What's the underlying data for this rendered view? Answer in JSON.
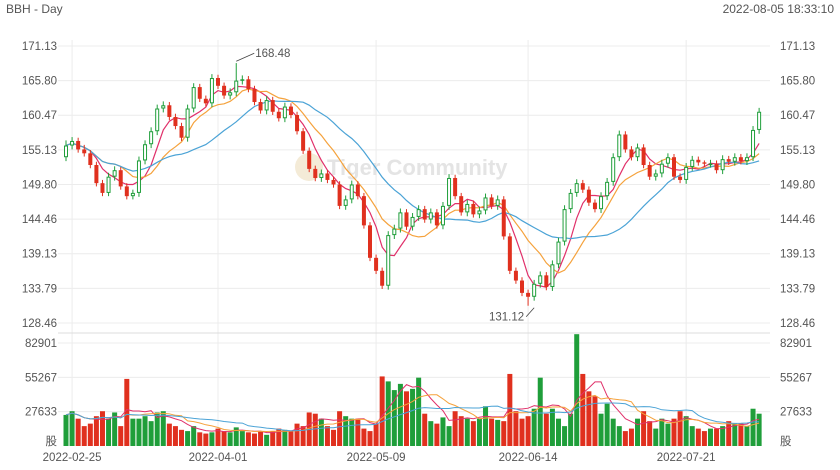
{
  "header": {
    "symbol_period": "BBH - Day",
    "timestamp": "2022-08-05 18:33:10"
  },
  "watermark": "Tiger Community",
  "colors": {
    "up": "#1f9e3a",
    "down": "#e0301e",
    "ma1": "#e0306a",
    "ma2": "#f5a23c",
    "ma3": "#4ba3d6",
    "grid": "#ececec"
  },
  "chart_data": [
    {
      "type": "candlestick",
      "price_axis": {
        "ylim": [
          128.46,
          171.13
        ],
        "tick_labels": [
          "171.13",
          "165.80",
          "160.47",
          "155.13",
          "149.80",
          "144.46",
          "139.13",
          "133.79",
          "128.46"
        ]
      },
      "x_tick_labels": [
        {
          "label": "2022-02-25",
          "index": 1
        },
        {
          "label": "2022-04-01",
          "index": 25
        },
        {
          "label": "2022-05-09",
          "index": 51
        },
        {
          "label": "2022-06-14",
          "index": 76
        },
        {
          "label": "2022-07-21",
          "index": 102
        }
      ],
      "annotations": [
        {
          "text": "168.48",
          "index": 28,
          "value": 168.48
        },
        {
          "text": "131.12",
          "index": 77,
          "value": 131.12
        }
      ],
      "close": [
        155.8,
        156.5,
        155.2,
        154.6,
        152.8,
        150.0,
        148.5,
        151.0,
        152.0,
        149.5,
        148.0,
        148.5,
        153.5,
        156.0,
        158.0,
        161.5,
        162.0,
        160.2,
        158.8,
        157.0,
        161.5,
        164.8,
        163.0,
        162.3,
        166.2,
        165.0,
        163.5,
        164.0,
        165.8,
        166.0,
        164.5,
        162.5,
        161.2,
        162.8,
        161.0,
        160.0,
        161.8,
        160.5,
        158.0,
        155.0,
        152.2,
        150.8,
        151.5,
        150.5,
        149.8,
        146.5,
        147.5,
        149.8,
        148.0,
        143.5,
        138.5,
        136.5,
        134.2,
        142.0,
        143.0,
        145.5,
        143.3,
        144.8,
        146.0,
        144.4,
        145.5,
        143.5,
        146.5,
        150.8,
        148.0,
        145.5,
        146.8,
        145.2,
        145.8,
        147.8,
        146.5,
        147.5,
        141.8,
        136.5,
        135.0,
        133.1,
        132.5,
        134.5,
        135.8,
        134.0,
        137.5,
        141.0,
        146.0,
        148.5,
        150.0,
        149.0,
        147.0,
        146.0,
        148.0,
        150.2,
        154.0,
        157.5,
        155.2,
        154.0,
        155.5,
        152.8,
        151.0,
        151.5,
        153.0,
        154.0,
        151.0,
        150.5,
        152.5,
        153.6,
        153.2,
        153.0,
        153.0,
        152.0,
        153.7,
        153.3,
        154.0,
        153.4,
        154.0,
        158.2,
        161.0
      ],
      "open": [
        154.0,
        155.8,
        156.5,
        155.2,
        154.6,
        152.8,
        150.0,
        148.5,
        151.0,
        152.0,
        149.5,
        148.0,
        148.5,
        153.5,
        156.0,
        158.0,
        161.5,
        162.0,
        160.2,
        158.8,
        157.0,
        161.5,
        164.8,
        163.0,
        162.3,
        166.2,
        165.0,
        163.5,
        164.0,
        165.8,
        166.0,
        164.5,
        162.5,
        161.2,
        162.8,
        161.0,
        160.0,
        161.8,
        160.5,
        158.0,
        155.0,
        152.2,
        150.8,
        151.5,
        150.5,
        149.8,
        146.5,
        147.5,
        149.8,
        148.0,
        143.5,
        138.5,
        136.5,
        134.2,
        142.0,
        143.0,
        145.5,
        143.3,
        144.8,
        146.0,
        144.4,
        145.5,
        143.5,
        146.5,
        150.8,
        148.0,
        145.5,
        146.8,
        145.2,
        145.8,
        147.8,
        146.5,
        147.5,
        141.8,
        136.5,
        135.0,
        133.1,
        132.5,
        134.5,
        135.8,
        134.0,
        137.5,
        141.0,
        146.0,
        148.5,
        150.0,
        149.0,
        147.0,
        146.0,
        148.0,
        150.2,
        154.0,
        157.5,
        155.2,
        154.0,
        155.5,
        152.8,
        151.0,
        151.5,
        153.0,
        154.0,
        151.0,
        150.5,
        152.5,
        153.6,
        153.2,
        153.0,
        153.0,
        152.0,
        153.7,
        153.3,
        154.0,
        153.4,
        154.0,
        158.2
      ],
      "high": [
        156.6,
        157.1,
        157.0,
        155.9,
        155.1,
        153.3,
        150.5,
        151.6,
        152.6,
        152.5,
        150.0,
        149.0,
        154.1,
        156.6,
        158.6,
        162.1,
        162.6,
        162.5,
        160.7,
        159.3,
        162.1,
        165.4,
        165.3,
        163.5,
        166.8,
        166.7,
        165.5,
        164.6,
        168.5,
        166.6,
        166.5,
        165.0,
        163.0,
        163.4,
        163.3,
        161.5,
        162.4,
        162.3,
        161.0,
        158.5,
        155.5,
        152.7,
        152.1,
        152.0,
        151.0,
        150.3,
        148.1,
        150.4,
        150.3,
        148.5,
        144.0,
        139.0,
        137.0,
        142.6,
        143.6,
        146.1,
        146.0,
        145.4,
        146.6,
        146.5,
        146.1,
        146.0,
        147.1,
        151.4,
        151.3,
        148.5,
        147.4,
        147.3,
        146.4,
        148.4,
        148.3,
        148.1,
        148.0,
        142.3,
        137.0,
        135.5,
        133.6,
        135.1,
        136.4,
        136.3,
        138.1,
        141.6,
        146.6,
        149.1,
        150.6,
        150.5,
        149.5,
        147.5,
        148.6,
        150.8,
        154.6,
        158.1,
        158.0,
        155.7,
        156.1,
        156.0,
        153.3,
        152.1,
        153.6,
        154.6,
        154.5,
        151.5,
        153.1,
        154.2,
        154.1,
        153.5,
        153.6,
        153.5,
        154.3,
        154.2,
        154.6,
        154.5,
        154.6,
        158.8,
        161.6
      ],
      "low": [
        153.4,
        155.2,
        154.7,
        154.1,
        152.3,
        149.5,
        148.0,
        148.0,
        150.4,
        149.0,
        147.5,
        147.5,
        147.9,
        152.9,
        155.4,
        157.4,
        160.9,
        159.7,
        158.3,
        156.5,
        156.4,
        160.9,
        162.5,
        161.8,
        161.7,
        164.5,
        163.0,
        162.9,
        163.4,
        165.2,
        164.0,
        162.0,
        160.7,
        160.6,
        160.5,
        159.5,
        159.4,
        160.0,
        157.5,
        154.5,
        151.7,
        150.3,
        150.2,
        150.0,
        149.3,
        146.0,
        145.9,
        146.9,
        147.5,
        143.0,
        138.0,
        136.0,
        133.7,
        133.6,
        141.4,
        142.4,
        142.8,
        142.7,
        144.2,
        143.9,
        143.8,
        143.0,
        142.9,
        145.9,
        147.5,
        145.0,
        144.9,
        144.7,
        144.6,
        145.2,
        146.0,
        145.9,
        141.3,
        136.0,
        134.5,
        132.6,
        131.12,
        131.9,
        133.9,
        133.5,
        133.4,
        136.9,
        140.4,
        145.4,
        147.9,
        148.5,
        146.5,
        145.5,
        145.4,
        147.4,
        149.6,
        153.4,
        154.7,
        153.5,
        153.4,
        152.3,
        150.5,
        150.4,
        150.9,
        152.4,
        150.5,
        150.0,
        149.9,
        151.9,
        152.7,
        152.5,
        152.4,
        151.5,
        151.4,
        152.8,
        152.7,
        152.9,
        152.8,
        153.4,
        157.6
      ]
    },
    {
      "type": "bar",
      "title": "股",
      "volume_axis": {
        "ylim": [
          0,
          82901
        ],
        "tick_labels": [
          "82901",
          "55267",
          "27633",
          "股"
        ]
      },
      "values": [
        25000,
        28000,
        22000,
        16000,
        18000,
        24000,
        28000,
        22000,
        27000,
        16000,
        54000,
        22000,
        22000,
        24000,
        20000,
        27000,
        28000,
        18000,
        16000,
        13000,
        12000,
        16000,
        11000,
        10000,
        11000,
        14000,
        12000,
        11000,
        15000,
        12000,
        11000,
        10000,
        12000,
        9000,
        12000,
        14000,
        13000,
        12000,
        18000,
        16000,
        27000,
        26000,
        22000,
        16000,
        13000,
        28000,
        24000,
        22000,
        22000,
        14000,
        12000,
        18000,
        56000,
        52000,
        45000,
        50000,
        44000,
        46000,
        55000,
        26000,
        20000,
        18000,
        23000,
        16000,
        28000,
        24000,
        22000,
        20000,
        22000,
        32000,
        22000,
        21000,
        20000,
        58000,
        28000,
        22000,
        24000,
        30000,
        55000,
        26000,
        30000,
        22000,
        16000,
        26000,
        90000,
        58000,
        44000,
        40000,
        26000,
        34000,
        22000,
        16000,
        12000,
        14000,
        22000,
        28000,
        20000,
        14000,
        22000,
        18000,
        22000,
        28000,
        24000,
        16000,
        14000,
        12000,
        14000,
        14000,
        16000,
        20000,
        18000,
        18000,
        16000,
        30000,
        26000
      ],
      "up": [
        true,
        true,
        false,
        false,
        false,
        false,
        false,
        true,
        true,
        false,
        false,
        true,
        true,
        true,
        true,
        true,
        true,
        false,
        false,
        false,
        true,
        true,
        false,
        false,
        true,
        false,
        false,
        true,
        true,
        true,
        false,
        false,
        false,
        true,
        false,
        false,
        true,
        false,
        false,
        false,
        false,
        false,
        true,
        false,
        false,
        false,
        true,
        true,
        false,
        false,
        false,
        false,
        false,
        true,
        true,
        true,
        false,
        true,
        true,
        false,
        true,
        false,
        true,
        true,
        false,
        false,
        true,
        false,
        true,
        true,
        false,
        true,
        false,
        false,
        false,
        false,
        false,
        true,
        true,
        false,
        true,
        true,
        true,
        true,
        true,
        false,
        false,
        false,
        true,
        true,
        true,
        true,
        false,
        false,
        true,
        false,
        false,
        true,
        true,
        true,
        false,
        false,
        true,
        true,
        false,
        false,
        true,
        false,
        true,
        false,
        true,
        false,
        true,
        true,
        true
      ]
    }
  ]
}
